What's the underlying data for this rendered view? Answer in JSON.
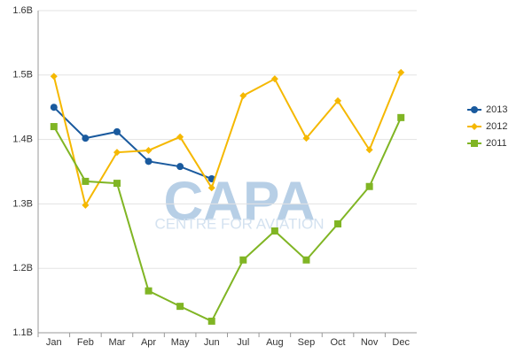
{
  "chart_data": {
    "type": "line",
    "categories": [
      "Jan",
      "Feb",
      "Mar",
      "Apr",
      "May",
      "Jun",
      "Jul",
      "Aug",
      "Sep",
      "Oct",
      "Nov",
      "Dec"
    ],
    "series": [
      {
        "name": "2013",
        "color": "#1a5a9e",
        "marker": "circle",
        "values": [
          1.45,
          1.402,
          1.412,
          1.366,
          1.358,
          1.339,
          null,
          null,
          null,
          null,
          null,
          null
        ]
      },
      {
        "name": "2012",
        "color": "#f5b800",
        "marker": "diamond",
        "values": [
          1.498,
          1.298,
          1.38,
          1.383,
          1.404,
          1.325,
          1.468,
          1.494,
          1.402,
          1.46,
          1.384,
          1.504
        ]
      },
      {
        "name": "2011",
        "color": "#80b524",
        "marker": "square",
        "values": [
          1.42,
          1.335,
          1.332,
          1.165,
          1.141,
          1.118,
          1.213,
          1.258,
          1.213,
          1.269,
          1.327,
          1.434
        ]
      }
    ],
    "ylim": [
      1.1,
      1.6
    ],
    "yticks": [
      {
        "value": 1.1,
        "label": "1.1B"
      },
      {
        "value": 1.2,
        "label": "1.2B"
      },
      {
        "value": 1.3,
        "label": "1.3B"
      },
      {
        "value": 1.4,
        "label": "1.4B"
      },
      {
        "value": 1.5,
        "label": "1.5B"
      },
      {
        "value": 1.6,
        "label": "1.6B"
      }
    ],
    "grid": true,
    "legend": "right",
    "watermark": {
      "logo": "CAPA",
      "subtitle": "CENTRE FOR AVIATION"
    }
  }
}
